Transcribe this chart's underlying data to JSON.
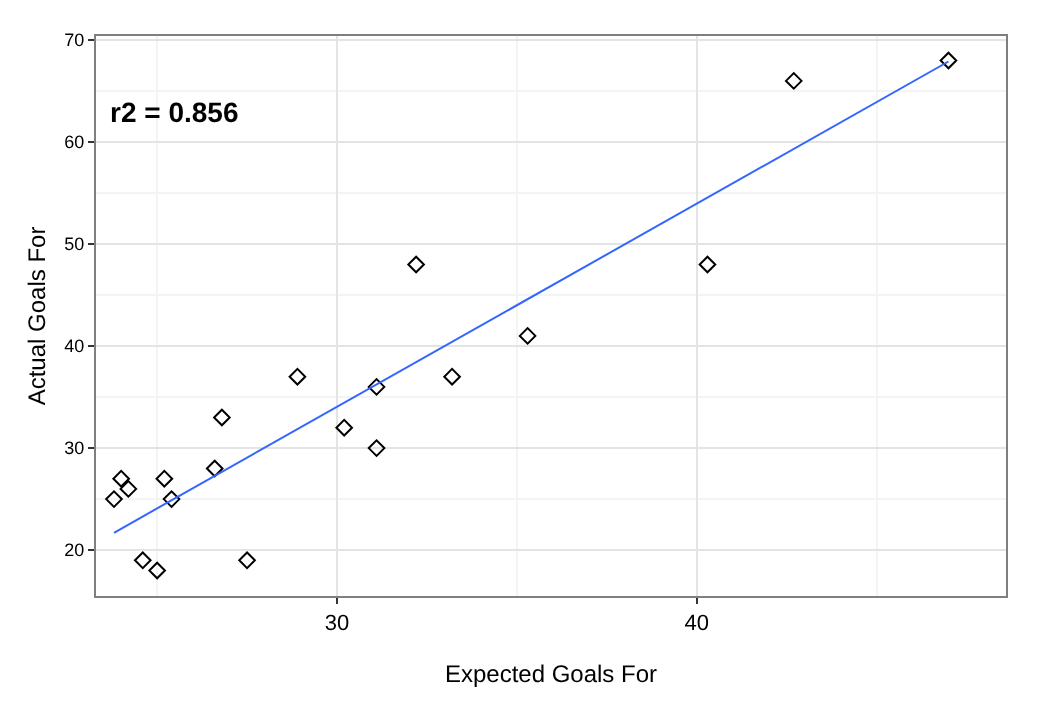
{
  "chart_data": {
    "type": "scatter",
    "xlabel": "Expected Goals For",
    "ylabel": "Actual Goals For",
    "xlim": [
      23.3,
      48.6
    ],
    "ylim": [
      15.5,
      70.4
    ],
    "xticks": [
      30,
      40
    ],
    "yticks": [
      20,
      30,
      40,
      50,
      60,
      70
    ],
    "grid": true,
    "annotations": [
      "r2 = 0.856"
    ],
    "series": [
      {
        "marker": "diamond",
        "color": "#000000",
        "x": [
          23.8,
          24.0,
          24.2,
          24.6,
          25.0,
          25.2,
          25.4,
          26.6,
          26.8,
          27.5,
          28.9,
          30.2,
          31.1,
          31.1,
          32.2,
          33.2,
          35.3,
          40.3,
          42.7,
          47.0
        ],
        "values": [
          25,
          27,
          26,
          19,
          18,
          27,
          25,
          28,
          33,
          19,
          37,
          32,
          36,
          30,
          48,
          37,
          41,
          48,
          66,
          68
        ]
      },
      {
        "type": "line",
        "marker": "none",
        "color": "#3366ff",
        "x": [
          23.8,
          47.0
        ],
        "values": [
          21.7,
          67.9
        ]
      }
    ]
  }
}
